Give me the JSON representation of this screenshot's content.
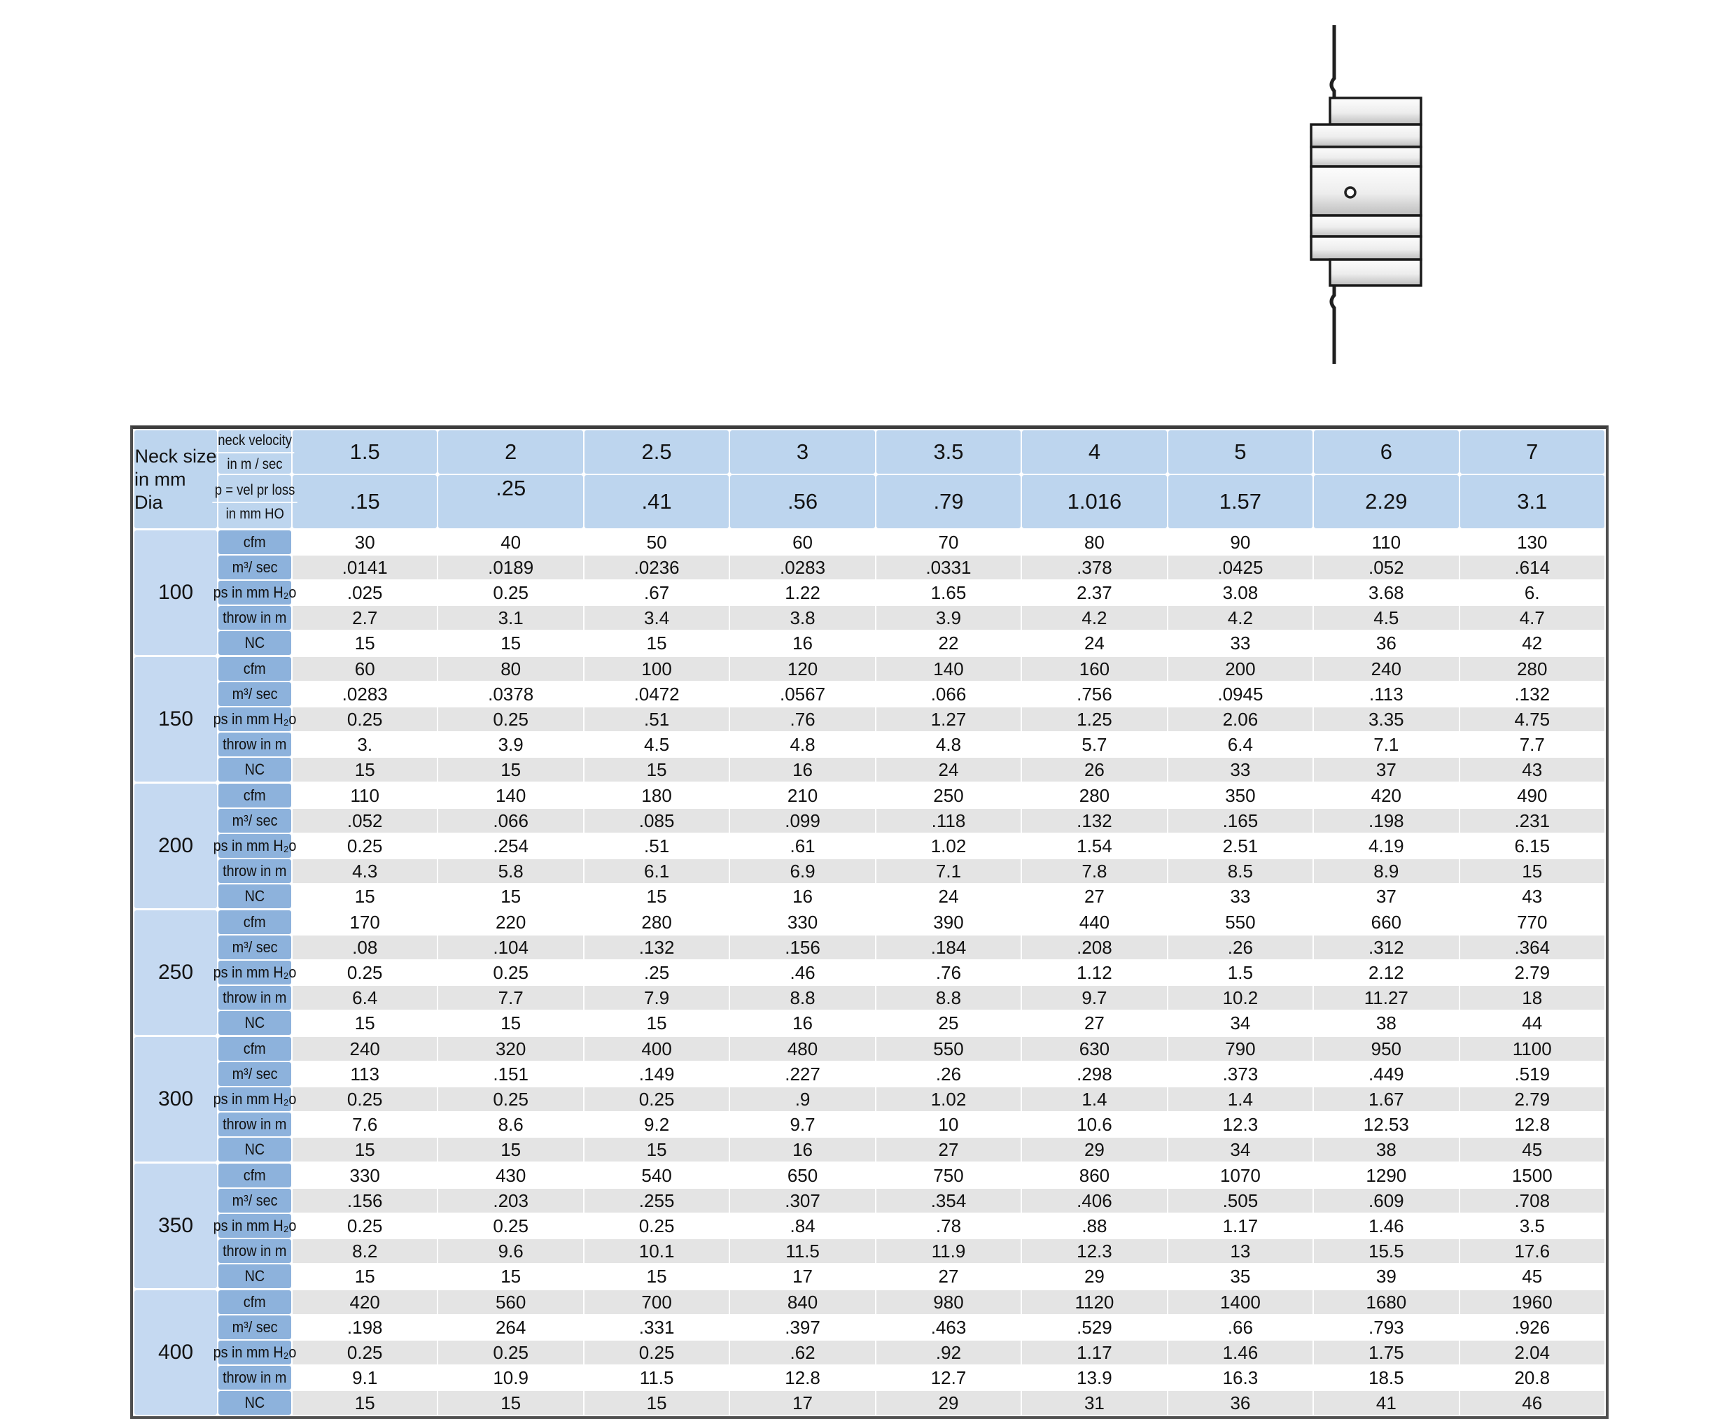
{
  "window": {
    "background": "#ffffff"
  },
  "diagram": {
    "type": "diffuser-cross-section-side-view",
    "bands": 7,
    "has_center_hole": true
  },
  "table": {
    "header": {
      "neck_size_line1": "Neck size",
      "neck_size_line2": "in mm Dia",
      "velocity_line1": "neck velocity",
      "velocity_line2": "in m / sec",
      "prloss_line1": "p = vel pr loss",
      "prloss_line2": "in mm HO",
      "velocities": [
        "1.5",
        "2",
        "2.5",
        "3",
        "3.5",
        "4",
        "5",
        "6",
        "7"
      ],
      "pressure_losses": [
        ".15",
        ".25",
        ".41",
        ".56",
        ".79",
        "1.016",
        "1.57",
        "2.29",
        "3.1"
      ]
    },
    "row_labels": [
      "cfm",
      "m³/ sec",
      "ps in mm H₂o",
      "throw in m",
      "NC"
    ],
    "blocks": [
      {
        "neck_size": "100",
        "rows": [
          [
            "30",
            "40",
            "50",
            "60",
            "70",
            "80",
            "90",
            "110",
            "130"
          ],
          [
            ".0141",
            ".0189",
            ".0236",
            ".0283",
            ".0331",
            ".378",
            ".0425",
            ".052",
            ".614"
          ],
          [
            ".025",
            "0.25",
            ".67",
            "1.22",
            "1.65",
            "2.37",
            "3.08",
            "3.68",
            "6."
          ],
          [
            "2.7",
            "3.1",
            "3.4",
            "3.8",
            "3.9",
            "4.2",
            "4.2",
            "4.5",
            "4.7"
          ],
          [
            "15",
            "15",
            "15",
            "16",
            "22",
            "24",
            "33",
            "36",
            "42"
          ]
        ]
      },
      {
        "neck_size": "150",
        "rows": [
          [
            "60",
            "80",
            "100",
            "120",
            "140",
            "160",
            "200",
            "240",
            "280"
          ],
          [
            ".0283",
            ".0378",
            ".0472",
            ".0567",
            ".066",
            ".756",
            ".0945",
            ".113",
            ".132"
          ],
          [
            "0.25",
            "0.25",
            ".51",
            ".76",
            "1.27",
            "1.25",
            "2.06",
            "3.35",
            "4.75"
          ],
          [
            "3.",
            "3.9",
            "4.5",
            "4.8",
            "4.8",
            "5.7",
            "6.4",
            "7.1",
            "7.7"
          ],
          [
            "15",
            "15",
            "15",
            "16",
            "24",
            "26",
            "33",
            "37",
            "43"
          ]
        ]
      },
      {
        "neck_size": "200",
        "rows": [
          [
            "110",
            "140",
            "180",
            "210",
            "250",
            "280",
            "350",
            "420",
            "490"
          ],
          [
            ".052",
            ".066",
            ".085",
            ".099",
            ".118",
            ".132",
            ".165",
            ".198",
            ".231"
          ],
          [
            "0.25",
            ".254",
            ".51",
            ".61",
            "1.02",
            "1.54",
            "2.51",
            "4.19",
            "6.15"
          ],
          [
            "4.3",
            "5.8",
            "6.1",
            "6.9",
            "7.1",
            "7.8",
            "8.5",
            "8.9",
            "15"
          ],
          [
            "15",
            "15",
            "15",
            "16",
            "24",
            "27",
            "33",
            "37",
            "43"
          ]
        ]
      },
      {
        "neck_size": "250",
        "rows": [
          [
            "170",
            "220",
            "280",
            "330",
            "390",
            "440",
            "550",
            "660",
            "770"
          ],
          [
            ".08",
            ".104",
            ".132",
            ".156",
            ".184",
            ".208",
            ".26",
            ".312",
            ".364"
          ],
          [
            "0.25",
            "0.25",
            ".25",
            ".46",
            ".76",
            "1.12",
            "1.5",
            "2.12",
            "2.79"
          ],
          [
            "6.4",
            "7.7",
            "7.9",
            "8.8",
            "8.8",
            "9.7",
            "10.2",
            "11.27",
            "18"
          ],
          [
            "15",
            "15",
            "15",
            "16",
            "25",
            "27",
            "34",
            "38",
            "44"
          ]
        ]
      },
      {
        "neck_size": "300",
        "rows": [
          [
            "240",
            "320",
            "400",
            "480",
            "550",
            "630",
            "790",
            "950",
            "1100"
          ],
          [
            "113",
            ".151",
            ".149",
            ".227",
            ".26",
            ".298",
            ".373",
            ".449",
            ".519"
          ],
          [
            "0.25",
            "0.25",
            "0.25",
            ".9",
            "1.02",
            "1.4",
            "1.4",
            "1.67",
            "2.79"
          ],
          [
            "7.6",
            "8.6",
            "9.2",
            "9.7",
            "10",
            "10.6",
            "12.3",
            "12.53",
            "12.8"
          ],
          [
            "15",
            "15",
            "15",
            "16",
            "27",
            "29",
            "34",
            "38",
            "45"
          ]
        ]
      },
      {
        "neck_size": "350",
        "rows": [
          [
            "330",
            "430",
            "540",
            "650",
            "750",
            "860",
            "1070",
            "1290",
            "1500"
          ],
          [
            ".156",
            ".203",
            ".255",
            ".307",
            ".354",
            ".406",
            ".505",
            ".609",
            ".708"
          ],
          [
            "0.25",
            "0.25",
            "0.25",
            ".84",
            ".78",
            ".88",
            "1.17",
            "1.46",
            "3.5"
          ],
          [
            "8.2",
            "9.6",
            "10.1",
            "11.5",
            "11.9",
            "12.3",
            "13",
            "15.5",
            "17.6"
          ],
          [
            "15",
            "15",
            "15",
            "17",
            "27",
            "29",
            "35",
            "39",
            "45"
          ]
        ]
      },
      {
        "neck_size": "400",
        "rows": [
          [
            "420",
            "560",
            "700",
            "840",
            "980",
            "1120",
            "1400",
            "1680",
            "1960"
          ],
          [
            ".198",
            "264",
            ".331",
            ".397",
            ".463",
            ".529",
            ".66",
            ".793",
            ".926"
          ],
          [
            "0.25",
            "0.25",
            "0.25",
            ".62",
            ".92",
            "1.17",
            "1.46",
            "1.75",
            "2.04"
          ],
          [
            "9.1",
            "10.9",
            "11.5",
            "12.8",
            "12.7",
            "13.9",
            "16.3",
            "18.5",
            "20.8"
          ],
          [
            "15",
            "15",
            "15",
            "17",
            "29",
            "31",
            "36",
            "41",
            "46"
          ]
        ]
      }
    ]
  },
  "colors": {
    "header_blue": "#bdd5ee",
    "neck_blue": "#c5d9f1",
    "label_blue": "#8db2dc",
    "stripe_gray": "#e4e4e4",
    "row_white": "#ffffff",
    "text": "#121212",
    "border": "#4f4f4f",
    "diagram_line": "#1f1f1f"
  }
}
